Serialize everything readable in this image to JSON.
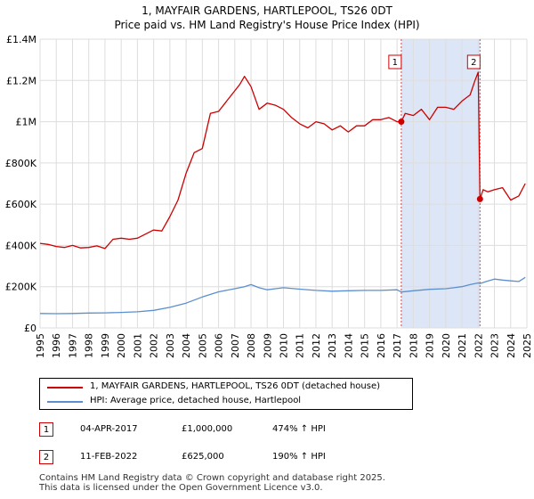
{
  "chart_data": {
    "type": "line",
    "title": "1, MAYFAIR GARDENS, HARTLEPOOL, TS26 0DT",
    "subtitle": "Price paid vs. HM Land Registry's House Price Index (HPI)",
    "ylim": [
      0,
      1400000
    ],
    "xlim": [
      1995,
      2025
    ],
    "y_ticks": [
      {
        "value": 0,
        "label": "£0"
      },
      {
        "value": 200000,
        "label": "£200K"
      },
      {
        "value": 400000,
        "label": "£400K"
      },
      {
        "value": 600000,
        "label": "£600K"
      },
      {
        "value": 800000,
        "label": "£800K"
      },
      {
        "value": 1000000,
        "label": "£1M"
      },
      {
        "value": 1200000,
        "label": "£1.2M"
      },
      {
        "value": 1400000,
        "label": "£1.4M"
      }
    ],
    "x_ticks": [
      "1995",
      "1996",
      "1997",
      "1998",
      "1999",
      "2000",
      "2001",
      "2002",
      "2003",
      "2004",
      "2005",
      "2006",
      "2007",
      "2008",
      "2009",
      "2010",
      "2011",
      "2012",
      "2013",
      "2014",
      "2015",
      "2016",
      "2017",
      "2018",
      "2019",
      "2020",
      "2021",
      "2022",
      "2023",
      "2024",
      "2025"
    ],
    "grid": true,
    "colors": {
      "property": "#cc0000",
      "hpi": "#5b8fcf",
      "shade": "#dde6f6",
      "grid": "#dddddd"
    },
    "series": [
      {
        "name": "1, MAYFAIR GARDENS, HARTLEPOOL, TS26 0DT (detached house)",
        "x": [
          1995.0,
          1995.5,
          1996.0,
          1996.5,
          1997.0,
          1997.5,
          1998.0,
          1998.5,
          1999.0,
          1999.5,
          2000.0,
          2000.5,
          2001.0,
          2001.5,
          2002.0,
          2002.5,
          2003.0,
          2003.5,
          2004.0,
          2004.5,
          2005.0,
          2005.5,
          2006.0,
          2006.5,
          2007.0,
          2007.3,
          2007.6,
          2008.0,
          2008.5,
          2009.0,
          2009.5,
          2010.0,
          2010.5,
          2011.0,
          2011.5,
          2012.0,
          2012.5,
          2013.0,
          2013.5,
          2014.0,
          2014.5,
          2015.0,
          2015.5,
          2016.0,
          2016.5,
          2017.0,
          2017.26,
          2017.5,
          2018.0,
          2018.5,
          2019.0,
          2019.5,
          2020.0,
          2020.5,
          2021.0,
          2021.5,
          2021.8,
          2022.0,
          2022.11,
          2022.3,
          2022.6,
          2023.0,
          2023.5,
          2024.0,
          2024.5,
          2024.9
        ],
        "values": [
          410000,
          405000,
          395000,
          390000,
          400000,
          388000,
          390000,
          398000,
          385000,
          430000,
          435000,
          430000,
          435000,
          455000,
          475000,
          470000,
          540000,
          620000,
          750000,
          850000,
          870000,
          1040000,
          1050000,
          1100000,
          1150000,
          1180000,
          1220000,
          1170000,
          1060000,
          1090000,
          1080000,
          1060000,
          1020000,
          990000,
          970000,
          1000000,
          990000,
          960000,
          980000,
          950000,
          980000,
          980000,
          1010000,
          1010000,
          1020000,
          1000000,
          1000000,
          1040000,
          1030000,
          1060000,
          1010000,
          1070000,
          1070000,
          1060000,
          1100000,
          1130000,
          1200000,
          1240000,
          625000,
          670000,
          660000,
          670000,
          680000,
          620000,
          640000,
          700000
        ]
      },
      {
        "name": "HPI: Average price, detached house, Hartlepool",
        "x": [
          1995.0,
          1996.0,
          1997.0,
          1998.0,
          1999.0,
          2000.0,
          2001.0,
          2002.0,
          2003.0,
          2004.0,
          2005.0,
          2006.0,
          2007.0,
          2007.6,
          2008.0,
          2008.5,
          2009.0,
          2009.5,
          2010.0,
          2011.0,
          2012.0,
          2013.0,
          2014.0,
          2015.0,
          2016.0,
          2017.0,
          2017.26,
          2018.0,
          2019.0,
          2020.0,
          2021.0,
          2021.5,
          2022.0,
          2022.11,
          2022.5,
          2023.0,
          2023.5,
          2024.0,
          2024.5,
          2024.9
        ],
        "values": [
          70000,
          69000,
          70000,
          72000,
          73000,
          75000,
          78000,
          85000,
          100000,
          120000,
          150000,
          175000,
          190000,
          200000,
          210000,
          195000,
          185000,
          190000,
          195000,
          188000,
          182000,
          178000,
          180000,
          182000,
          182000,
          185000,
          174000,
          180000,
          187000,
          190000,
          200000,
          210000,
          218000,
          215000,
          225000,
          237000,
          232000,
          228000,
          225000,
          245000
        ]
      }
    ],
    "sales": [
      {
        "marker": "1",
        "x": 2017.26,
        "value": 1000000
      },
      {
        "marker": "2",
        "x": 2022.11,
        "value": 625000
      }
    ]
  },
  "legend": {
    "property_label": "1, MAYFAIR GARDENS, HARTLEPOOL, TS26 0DT (detached house)",
    "hpi_label": "HPI: Average price, detached house, Hartlepool"
  },
  "annotations": [
    {
      "marker": "1",
      "date": "04-APR-2017",
      "price": "£1,000,000",
      "hpi": "474% ↑ HPI"
    },
    {
      "marker": "2",
      "date": "11-FEB-2022",
      "price": "£625,000",
      "hpi": "190% ↑ HPI"
    }
  ],
  "footer": {
    "line1": "Contains HM Land Registry data © Crown copyright and database right 2025.",
    "line2": "This data is licensed under the Open Government Licence v3.0."
  }
}
